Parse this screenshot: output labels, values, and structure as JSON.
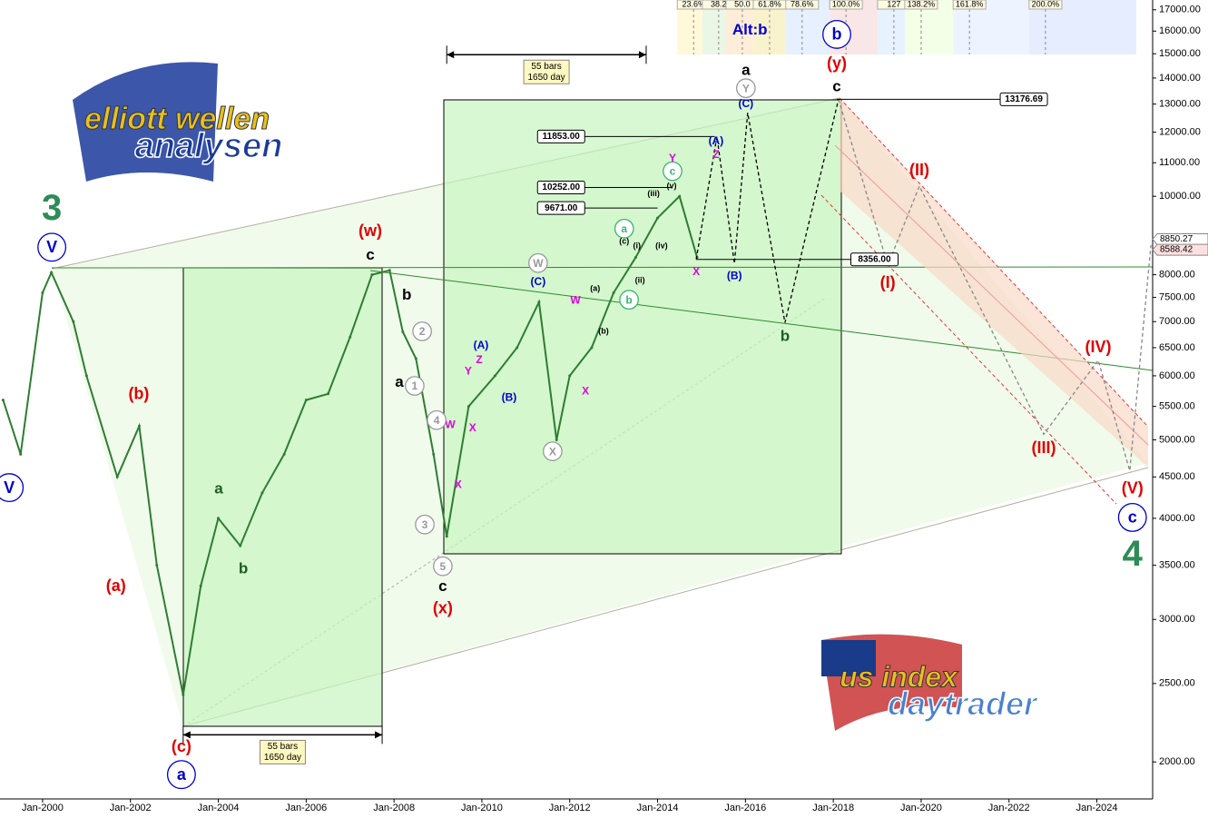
{
  "chart_data": {
    "type": "line",
    "log_scale": true,
    "color": "#2e7d32",
    "xlim": [
      1999.03,
      2025.27
    ],
    "ylim": [
      1800,
      17480
    ],
    "xticks": [
      {
        "value": 2000,
        "label": "Jan-2000"
      },
      {
        "value": 2002,
        "label": "Jan-2002"
      },
      {
        "value": 2004,
        "label": "Jan-2004"
      },
      {
        "value": 2006,
        "label": "Jan-2006"
      },
      {
        "value": 2008,
        "label": "Jan-2008"
      },
      {
        "value": 2010,
        "label": "Jan-2010"
      },
      {
        "value": 2012,
        "label": "Jan-2012"
      },
      {
        "value": 2014,
        "label": "Jan-2014"
      },
      {
        "value": 2016,
        "label": "Jan-2016"
      },
      {
        "value": 2018,
        "label": "Jan-2018"
      },
      {
        "value": 2020,
        "label": "Jan-2020"
      },
      {
        "value": 2022,
        "label": "Jan-2022"
      },
      {
        "value": 2024,
        "label": "Jan-2024"
      }
    ],
    "yticks": [
      {
        "value": 2000,
        "label": "2000.00"
      },
      {
        "value": 2500,
        "label": "2500.00"
      },
      {
        "value": 3000,
        "label": "3000.00"
      },
      {
        "value": 3500,
        "label": "3500.00"
      },
      {
        "value": 4000,
        "label": "4000.00"
      },
      {
        "value": 4500,
        "label": "4500.00"
      },
      {
        "value": 5000,
        "label": "5000.00"
      },
      {
        "value": 5500,
        "label": "5500.00"
      },
      {
        "value": 6000,
        "label": "6000.00"
      },
      {
        "value": 6500,
        "label": "6500.00"
      },
      {
        "value": 7000,
        "label": "7000.00"
      },
      {
        "value": 7500,
        "label": "7500.00"
      },
      {
        "value": 8000,
        "label": "8000.00"
      },
      {
        "value": 10000,
        "label": "10000.00"
      },
      {
        "value": 11000,
        "label": "11000.00"
      },
      {
        "value": 12000,
        "label": "12000.00"
      },
      {
        "value": 13000,
        "label": "13000.00"
      },
      {
        "value": 14000,
        "label": "14000.00"
      },
      {
        "value": 15000,
        "label": "15000.00"
      },
      {
        "value": 16000,
        "label": "16000.00"
      },
      {
        "value": 17000,
        "label": "17000.00"
      }
    ],
    "x": [
      1999.1,
      1999.5,
      2000.0,
      2000.2,
      2000.7,
      2001.0,
      2001.7,
      2002.2,
      2002.6,
      2003.2,
      2003.6,
      2004.0,
      2004.5,
      2005.0,
      2005.5,
      2006.0,
      2006.5,
      2007.0,
      2007.5,
      2007.9,
      2008.2,
      2008.5,
      2008.9,
      2009.2,
      2009.7,
      2010.3,
      2010.8,
      2011.3,
      2011.7,
      2012.0,
      2012.5,
      2013.0,
      2013.5,
      2014.0,
      2014.5,
      2014.9
    ],
    "values": [
      5600,
      4800,
      7600,
      8050,
      7000,
      6000,
      4500,
      5200,
      3500,
      2420,
      3300,
      4000,
      3700,
      4300,
      4800,
      5600,
      5700,
      6700,
      8000,
      8100,
      6800,
      6300,
      4800,
      3800,
      5500,
      6000,
      6500,
      7400,
      5000,
      6000,
      6500,
      7600,
      8400,
      9400,
      10000,
      8400
    ],
    "projections": [
      {
        "color": "#000000",
        "x": [
          2014.88,
          2015.35,
          2015.75,
          2016.05,
          2016.9,
          2018.12
        ],
        "values": [
          8356,
          11853,
          8260,
          12680,
          6980,
          13176.69
        ]
      },
      {
        "color": "#888888",
        "x": [
          2018.12,
          2019.24,
          2019.96,
          2022.79,
          2024.03,
          2024.75,
          2025.23
        ],
        "values": [
          13176.69,
          8220,
          10290,
          5080,
          6270,
          4580,
          8700
        ]
      }
    ],
    "levels": [
      {
        "value": 13176.69,
        "x": [
          2018.08,
          2021.8
        ],
        "side": "end"
      },
      {
        "value": 11853,
        "label": "11853.00",
        "x": [
          2012.3,
          2015.3
        ],
        "side": "start"
      },
      {
        "value": 10252,
        "label": "10252.00",
        "x": [
          2012.3,
          2014.3
        ],
        "side": "start"
      },
      {
        "value": 9671,
        "label": "9671.00",
        "x": [
          2012.3,
          2014.0
        ],
        "side": "start"
      },
      {
        "value": 8356,
        "label": "8356.00",
        "x": [
          2014.88,
          2018.4
        ],
        "side": "end"
      }
    ],
    "last_labels": [
      {
        "value": 8850.27,
        "label": "8850.27"
      },
      {
        "value": 8588.42,
        "label": "8588.42"
      }
    ],
    "fib_labels": [
      {
        "text": "23.6%",
        "x": 2014.82
      },
      {
        "text": "38.2",
        "x": 2015.39
      },
      {
        "text": "50.0",
        "x": 2015.93
      },
      {
        "text": "61.8%",
        "x": 2016.55
      },
      {
        "text": "78.6%",
        "x": 2017.29
      },
      {
        "text": "100.0%",
        "x": 2018.29
      },
      {
        "text": "127",
        "x": 2019.38
      },
      {
        "text": "138.2%",
        "x": 2020.0
      },
      {
        "text": "161.8%",
        "x": 2021.1
      },
      {
        "text": "200.0%",
        "x": 2022.83
      }
    ],
    "measures": [
      {
        "lines": [
          "55 bars",
          "1650 day"
        ],
        "x": [
          2003.2,
          2007.73
        ],
        "y": 2160
      },
      {
        "lines": [
          "55 bars",
          "1650 day"
        ],
        "x": [
          2009.2,
          2013.74
        ],
        "y": 14960
      }
    ],
    "annotations": [
      {
        "text": "3",
        "x": 2000.21,
        "y": 9640,
        "color": "#2e8b57",
        "level": "primary"
      },
      {
        "text": "V",
        "x": 2000.21,
        "y": 8650,
        "color": "#0000cc",
        "level": "intermediate",
        "circled": true
      },
      {
        "text": "V",
        "x": 1999.24,
        "y": 4365,
        "color": "#0000cc",
        "level": "intermediate",
        "circled": true
      },
      {
        "text": "(a)",
        "x": 2001.67,
        "y": 3300,
        "color": "#e00000",
        "level": "intermediate"
      },
      {
        "text": "(b)",
        "x": 2002.19,
        "y": 5700,
        "color": "#e00000",
        "level": "intermediate"
      },
      {
        "text": "(c)",
        "x": 2003.16,
        "y": 2090,
        "color": "#e00000",
        "level": "intermediate"
      },
      {
        "text": "a",
        "x": 2003.16,
        "y": 1929,
        "color": "#0000cc",
        "level": "intermediate",
        "circled": true
      },
      {
        "text": "a",
        "x": 2004.01,
        "y": 4355,
        "color": "#1b5e20",
        "level": "minor"
      },
      {
        "text": "b",
        "x": 2004.57,
        "y": 3470,
        "color": "#1b5e20",
        "level": "minor"
      },
      {
        "text": "(w)",
        "x": 2007.46,
        "y": 9060,
        "color": "#e00000",
        "level": "intermediate"
      },
      {
        "text": "c",
        "x": 2007.46,
        "y": 8470,
        "color": "#000000",
        "level": "minor"
      },
      {
        "text": "b",
        "x": 2008.29,
        "y": 7560,
        "color": "#000000",
        "level": "minor"
      },
      {
        "text": "a",
        "x": 2008.12,
        "y": 5900,
        "color": "#000000",
        "level": "minor"
      },
      {
        "text": "c",
        "x": 2009.11,
        "y": 3300,
        "color": "#000000",
        "level": "minor"
      },
      {
        "text": "(x)",
        "x": 2009.11,
        "y": 3100,
        "color": "#e00000",
        "level": "intermediate"
      },
      {
        "text": "b",
        "x": 2018.08,
        "y": 15850,
        "color": "#0000cc",
        "level": "intermediate",
        "circled": true
      },
      {
        "text": "(y)",
        "x": 2018.08,
        "y": 14590,
        "color": "#e00000",
        "level": "intermediate"
      },
      {
        "text": "c",
        "x": 2018.08,
        "y": 13680,
        "color": "#000000",
        "level": "minor"
      },
      {
        "text": "a",
        "x": 2016.01,
        "y": 14330,
        "color": "#000000",
        "level": "minor"
      },
      {
        "text": "b",
        "x": 2016.9,
        "y": 6720,
        "color": "#1b5e20",
        "level": "minor"
      },
      {
        "text": "Alt:b",
        "x": 2016.1,
        "y": 16070,
        "color": "#0000cc",
        "level": "minor"
      },
      {
        "text": "(I)",
        "x": 2019.24,
        "y": 7820,
        "color": "#e00000",
        "level": "intermediate"
      },
      {
        "text": "(II)",
        "x": 2019.96,
        "y": 10770,
        "color": "#e00000",
        "level": "intermediate"
      },
      {
        "text": "(III)",
        "x": 2022.79,
        "y": 4890,
        "color": "#e00000",
        "level": "intermediate"
      },
      {
        "text": "(IV)",
        "x": 2024.03,
        "y": 6510,
        "color": "#e00000",
        "level": "intermediate"
      },
      {
        "text": "(V)",
        "x": 2024.81,
        "y": 4355,
        "color": "#e00000",
        "level": "intermediate"
      },
      {
        "text": "c",
        "x": 2024.81,
        "y": 4010,
        "color": "#0000cc",
        "level": "intermediate",
        "circled": true
      },
      {
        "text": "4",
        "x": 2024.81,
        "y": 3600,
        "color": "#2e8b57",
        "level": "primary"
      },
      {
        "text": "(A)",
        "x": 2009.98,
        "y": 6550,
        "color": "#0000cc",
        "level": "minute"
      },
      {
        "text": "(B)",
        "x": 2010.62,
        "y": 5650,
        "color": "#0000cc",
        "level": "minute"
      },
      {
        "text": "(C)",
        "x": 2011.28,
        "y": 7850,
        "color": "#0000cc",
        "level": "minute"
      },
      {
        "text": "(A)",
        "x": 2015.33,
        "y": 11720,
        "color": "#0000cc",
        "level": "minute"
      },
      {
        "text": "(B)",
        "x": 2015.75,
        "y": 7980,
        "color": "#0000cc",
        "level": "minute"
      },
      {
        "text": "(C)",
        "x": 2016.01,
        "y": 13030,
        "color": "#0000cc",
        "level": "minute"
      },
      {
        "text": "W",
        "x": 2009.28,
        "y": 5230,
        "color": "#e000e0",
        "level": "minute"
      },
      {
        "text": "X",
        "x": 2009.46,
        "y": 4410,
        "color": "#e000e0",
        "level": "minute"
      },
      {
        "text": "Y",
        "x": 2009.69,
        "y": 6090,
        "color": "#e000e0",
        "level": "minute"
      },
      {
        "text": "Z",
        "x": 2009.94,
        "y": 6290,
        "color": "#e000e0",
        "level": "minute"
      },
      {
        "text": "X",
        "x": 2009.79,
        "y": 5180,
        "color": "#e000e0",
        "level": "minute"
      },
      {
        "text": "W",
        "x": 2012.13,
        "y": 7450,
        "color": "#e000e0",
        "level": "minute"
      },
      {
        "text": "X",
        "x": 2012.36,
        "y": 5750,
        "color": "#e000e0",
        "level": "minute"
      },
      {
        "text": "Y",
        "x": 2014.34,
        "y": 11150,
        "color": "#e000e0",
        "level": "minute"
      },
      {
        "text": "Z",
        "x": 2015.33,
        "y": 11270,
        "color": "#e000e0",
        "level": "minute"
      },
      {
        "text": "X",
        "x": 2014.88,
        "y": 8080,
        "color": "#e000e0",
        "level": "minute"
      },
      {
        "text": "2",
        "x": 2008.64,
        "y": 6810,
        "color": "#999999",
        "level": "minute",
        "circled": true
      },
      {
        "text": "1",
        "x": 2008.47,
        "y": 5830,
        "color": "#999999",
        "level": "minute",
        "circled": true
      },
      {
        "text": "4",
        "x": 2008.97,
        "y": 5290,
        "color": "#999999",
        "level": "minute",
        "circled": true
      },
      {
        "text": "3",
        "x": 2008.7,
        "y": 3930,
        "color": "#999999",
        "level": "minute",
        "circled": true
      },
      {
        "text": "5",
        "x": 2009.11,
        "y": 3490,
        "color": "#999999",
        "level": "minute",
        "circled": true
      },
      {
        "text": "W",
        "x": 2011.28,
        "y": 8270,
        "color": "#999999",
        "level": "minute",
        "circled": true
      },
      {
        "text": "X",
        "x": 2011.61,
        "y": 4840,
        "color": "#999999",
        "level": "minute",
        "circled": true
      },
      {
        "text": "Y",
        "x": 2016.01,
        "y": 13600,
        "color": "#999999",
        "level": "minute",
        "circled": true
      },
      {
        "text": "a",
        "x": 2013.24,
        "y": 9120,
        "color": "#3cb371",
        "level": "minute",
        "circled": true
      },
      {
        "text": "b",
        "x": 2013.35,
        "y": 7450,
        "color": "#3cb371",
        "level": "minute",
        "circled": true
      },
      {
        "text": "c",
        "x": 2014.34,
        "y": 10740,
        "color": "#3cb371",
        "level": "minute",
        "circled": true
      },
      {
        "text": "(a)",
        "x": 2012.58,
        "y": 7700,
        "color": "#000000",
        "level": "tiny"
      },
      {
        "text": "(b)",
        "x": 2012.77,
        "y": 6820,
        "color": "#000000",
        "level": "tiny"
      },
      {
        "text": "(c)",
        "x": 2013.24,
        "y": 8810,
        "color": "#000000",
        "level": "tiny"
      },
      {
        "text": "(i)",
        "x": 2013.53,
        "y": 8700,
        "color": "#000000",
        "level": "tiny"
      },
      {
        "text": "(ii)",
        "x": 2013.6,
        "y": 7890,
        "color": "#000000",
        "level": "tiny"
      },
      {
        "text": "(iii)",
        "x": 2013.91,
        "y": 10090,
        "color": "#000000",
        "level": "tiny"
      },
      {
        "text": "(iv)",
        "x": 2014.09,
        "y": 8700,
        "color": "#000000",
        "level": "tiny"
      },
      {
        "text": "(v)",
        "x": 2014.32,
        "y": 10320,
        "color": "#000000",
        "level": "tiny"
      }
    ]
  },
  "logos": {
    "top": [
      "elliott wellen",
      "analysen"
    ],
    "bottom": [
      "us index",
      "daytrader"
    ]
  }
}
